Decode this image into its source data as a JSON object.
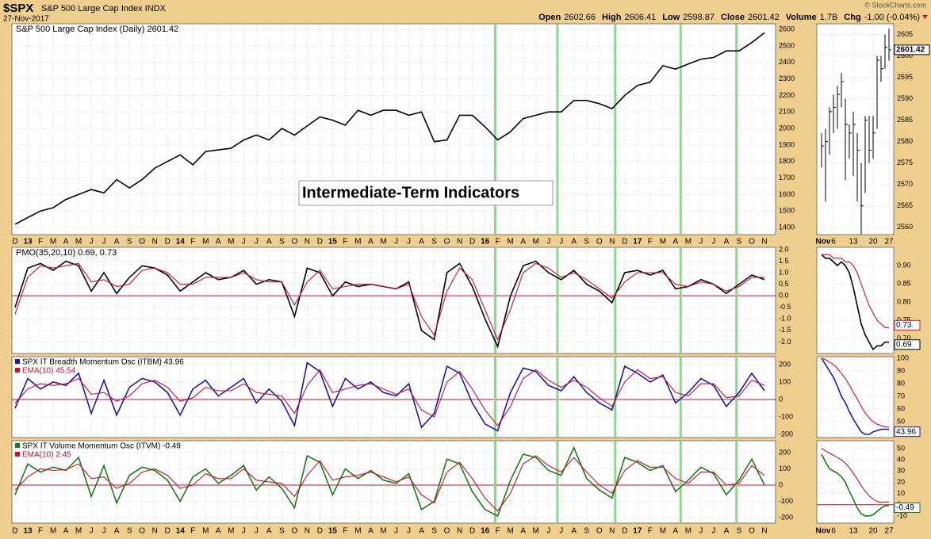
{
  "header": {
    "symbol": "$SPX",
    "name": "S&P 500 Large Cap Index INDX",
    "date": "27-Nov-2017",
    "copyright": "© StockCharts.com",
    "quote": [
      {
        "label": "Open",
        "value": "2602.66"
      },
      {
        "label": "High",
        "value": "2606.41"
      },
      {
        "label": "Low",
        "value": "2598.87"
      },
      {
        "label": "Close",
        "value": "2601.42"
      },
      {
        "label": "Volume",
        "value": "1.7B"
      },
      {
        "label": "Chg",
        "value": "-1.00 (-0.04%)"
      }
    ]
  },
  "chart_data": [
    {
      "type": "line",
      "title": "S&P 500 Large Cap Index (Daily) 2601.42",
      "annotation": "Intermediate-Term Indicators",
      "categories": [
        "D",
        "13",
        "F",
        "M",
        "A",
        "M",
        "J",
        "J",
        "A",
        "S",
        "O",
        "N",
        "D",
        "14",
        "F",
        "M",
        "A",
        "M",
        "J",
        "J",
        "A",
        "S",
        "O",
        "N",
        "D",
        "15",
        "F",
        "M",
        "A",
        "M",
        "J",
        "J",
        "A",
        "S",
        "O",
        "N",
        "D",
        "16",
        "F",
        "M",
        "A",
        "M",
        "J",
        "J",
        "A",
        "S",
        "O",
        "N",
        "D",
        "17",
        "F",
        "M",
        "A",
        "M",
        "J",
        "J",
        "A",
        "S",
        "O",
        "N"
      ],
      "series": [
        {
          "name": "S&P 500 Large Cap Index",
          "color": "#000000",
          "values": [
            1420,
            1460,
            1500,
            1520,
            1570,
            1600,
            1630,
            1610,
            1690,
            1640,
            1690,
            1760,
            1800,
            1840,
            1780,
            1860,
            1870,
            1880,
            1930,
            1960,
            1930,
            2000,
            1960,
            2015,
            2070,
            2050,
            2020,
            2110,
            2080,
            2110,
            2110,
            2080,
            2100,
            1920,
            1930,
            2080,
            2080,
            2010,
            1930,
            1980,
            2060,
            2080,
            2100,
            2100,
            2170,
            2170,
            2150,
            2120,
            2200,
            2260,
            2280,
            2380,
            2360,
            2390,
            2420,
            2430,
            2470,
            2470,
            2520,
            2580
          ]
        }
      ],
      "vlines": [
        37.8,
        42.7,
        47.25,
        52.4,
        56.8
      ],
      "vline_color": "#8fd48f",
      "ylim": [
        1357,
        2634
      ],
      "yticks": [
        1400,
        1500,
        1600,
        1700,
        1800,
        1900,
        2000,
        2100,
        2200,
        2300,
        2400,
        2500,
        2600
      ],
      "grid": true
    },
    {
      "type": "line",
      "title": "PMO(35,20,10) 0.69, 0.73",
      "series": [
        {
          "name": "PMO",
          "color": "#000000",
          "values": [
            -0.5,
            1.2,
            1.4,
            1.1,
            1.5,
            1.3,
            0.2,
            1.0,
            0.1,
            0.8,
            1.3,
            1.2,
            0.9,
            0.2,
            0.6,
            1.0,
            0.7,
            0.8,
            1.1,
            0.5,
            0.7,
            0.6,
            -0.9,
            1.2,
            1.0,
            0.0,
            0.6,
            0.4,
            0.5,
            0.4,
            0.3,
            0.6,
            -1.5,
            -1.9,
            1.0,
            1.4,
            0.4,
            -1.0,
            -2.2,
            0.0,
            1.3,
            1.5,
            1.0,
            0.7,
            1.1,
            0.5,
            0.2,
            -0.3,
            1.0,
            1.1,
            0.9,
            1.1,
            0.3,
            0.4,
            0.7,
            0.5,
            0.1,
            0.5,
            0.9,
            0.7
          ]
        },
        {
          "name": "Signal",
          "color": "#c8102e",
          "values": [
            -0.8,
            0.8,
            1.3,
            1.2,
            1.3,
            1.4,
            0.6,
            0.7,
            0.4,
            0.5,
            1.1,
            1.2,
            1.0,
            0.5,
            0.5,
            0.8,
            0.8,
            0.8,
            1.0,
            0.7,
            0.6,
            0.6,
            -0.4,
            0.6,
            1.1,
            0.3,
            0.4,
            0.5,
            0.5,
            0.4,
            0.3,
            0.5,
            -0.9,
            -1.7,
            0.2,
            1.2,
            0.7,
            -0.6,
            -1.9,
            -0.6,
            1.0,
            1.4,
            1.2,
            0.8,
            1.0,
            0.7,
            0.3,
            -0.1,
            0.6,
            1.0,
            1.0,
            1.0,
            0.5,
            0.4,
            0.6,
            0.5,
            0.2,
            0.4,
            0.8,
            0.8
          ]
        }
      ],
      "ref_line": 0,
      "ref_color": "#c8102e",
      "ylim": [
        -2.5,
        2.1
      ],
      "yticks": [
        {
          "value": -2,
          "label": "-2.0"
        },
        -1.5,
        {
          "value": -1,
          "label": "-1.0"
        },
        -0.5,
        {
          "value": 0,
          "label": "0.0"
        },
        0.5,
        {
          "value": 1,
          "label": "1.0"
        },
        1.5,
        {
          "value": 2,
          "label": "2.0"
        }
      ],
      "grid": true
    },
    {
      "type": "line",
      "series": [
        {
          "name": "SPX IT Breadth Momentum Osc (ITBM) 43.96",
          "color": "#1a1a9c",
          "values": [
            -50,
            120,
            60,
            100,
            80,
            150,
            -80,
            110,
            -90,
            70,
            120,
            100,
            40,
            -90,
            60,
            110,
            20,
            70,
            120,
            -20,
            60,
            -10,
            -150,
            210,
            160,
            -40,
            120,
            60,
            100,
            40,
            20,
            90,
            -160,
            -80,
            190,
            150,
            -20,
            -140,
            -180,
            40,
            180,
            160,
            80,
            50,
            130,
            40,
            -20,
            -60,
            190,
            150,
            100,
            140,
            -20,
            40,
            120,
            80,
            -40,
            40,
            150,
            50
          ]
        },
        {
          "name": "EMA(10) 45.54",
          "color": "#c8102e",
          "values": [
            -20,
            60,
            90,
            80,
            90,
            120,
            30,
            40,
            -10,
            20,
            90,
            110,
            70,
            -10,
            10,
            70,
            50,
            50,
            90,
            40,
            30,
            20,
            -80,
            80,
            170,
            40,
            60,
            80,
            90,
            60,
            30,
            60,
            -60,
            -100,
            100,
            160,
            60,
            -60,
            -150,
            -40,
            120,
            170,
            110,
            70,
            110,
            70,
            10,
            -40,
            100,
            170,
            120,
            130,
            40,
            20,
            90,
            90,
            10,
            20,
            110,
            80
          ]
        }
      ],
      "ref_line": 0,
      "ref_color": "#c8102e",
      "ylim": [
        -218,
        245
      ],
      "yticks": [
        -200,
        -100,
        0,
        100,
        200
      ],
      "grid": true
    },
    {
      "type": "line",
      "series": [
        {
          "name": "SPX IT Volume Momentum Osc (ITVM) -0.49",
          "color": "#1a7a1a",
          "values": [
            -60,
            130,
            80,
            110,
            90,
            170,
            -70,
            120,
            -110,
            60,
            110,
            90,
            30,
            -100,
            50,
            100,
            10,
            60,
            120,
            -30,
            50,
            -20,
            -140,
            180,
            140,
            -60,
            100,
            40,
            90,
            30,
            10,
            70,
            -150,
            -100,
            160,
            130,
            -40,
            -150,
            -190,
            30,
            190,
            170,
            90,
            60,
            230,
            40,
            -30,
            -80,
            170,
            140,
            90,
            120,
            -40,
            30,
            110,
            70,
            -60,
            30,
            160,
            0
          ]
        },
        {
          "name": "EMA(10) 2.45",
          "color": "#c8102e",
          "values": [
            -30,
            50,
            100,
            90,
            95,
            130,
            40,
            50,
            -20,
            10,
            80,
            100,
            60,
            -20,
            0,
            70,
            40,
            40,
            100,
            30,
            20,
            10,
            -70,
            60,
            150,
            30,
            50,
            60,
            80,
            50,
            20,
            50,
            -60,
            -110,
            80,
            140,
            40,
            -80,
            -160,
            -50,
            130,
            180,
            120,
            80,
            170,
            80,
            0,
            -50,
            90,
            150,
            110,
            110,
            40,
            10,
            80,
            80,
            0,
            10,
            120,
            60
          ]
        }
      ],
      "ref_line": 0,
      "ref_color": "#c8102e",
      "ylim": [
        -234,
        273
      ],
      "yticks": [
        -200,
        -100,
        0,
        100,
        200
      ],
      "grid": true
    },
    {
      "type": "ohlc",
      "categories": [
        "Nov",
        null,
        null,
        "6",
        null,
        null,
        null,
        null,
        "13",
        null,
        null,
        null,
        null,
        "20",
        null,
        null,
        null,
        "27"
      ],
      "high": [
        2582,
        2583,
        2588,
        2591,
        2593,
        2596,
        2590,
        2584,
        2587,
        2582,
        2575,
        2586,
        2586,
        2586,
        2600,
        2600,
        2605,
        2606.41
      ],
      "low": [
        2574,
        2566,
        2577,
        2582,
        2583,
        2588,
        2571,
        2576,
        2572,
        2566,
        2558,
        2568,
        2575,
        2576,
        2583,
        2594,
        2597,
        2598.87
      ],
      "close": [
        2579,
        2580,
        2587,
        2588,
        2591,
        2594,
        2584,
        2582,
        2584,
        2578,
        2565,
        2585,
        2578,
        2582,
        2599,
        2597,
        2602,
        2601.42
      ],
      "last_value_label": "2601.42",
      "color": "#000000",
      "ylim": [
        2558.3,
        2607.5
      ],
      "yticks": [
        2560,
        2565,
        2570,
        2575,
        2580,
        2585,
        2590,
        2595,
        2600,
        2605
      ],
      "grid": true
    },
    {
      "type": "line",
      "series": [
        {
          "name": "PMO",
          "color": "#000000",
          "values": [
            0.93,
            0.92,
            0.92,
            0.91,
            0.9,
            0.91,
            0.9,
            0.88,
            0.84,
            0.79,
            0.74,
            0.71,
            0.69,
            0.67,
            0.68,
            0.68,
            0.69,
            0.69
          ],
          "last_value_label": "0.69"
        },
        {
          "name": "Signal",
          "color": "#c8102e",
          "values": [
            0.93,
            0.93,
            0.93,
            0.92,
            0.92,
            0.92,
            0.91,
            0.91,
            0.9,
            0.88,
            0.85,
            0.82,
            0.79,
            0.77,
            0.75,
            0.74,
            0.73,
            0.73
          ],
          "last_value_label": "0.73"
        }
      ],
      "ylim": [
        0.659,
        0.95
      ],
      "yticks": [
        {
          "value": 0.7,
          "label": "0.70"
        },
        0.75,
        {
          "value": 0.8,
          "label": "0.80"
        },
        0.85,
        {
          "value": 0.9,
          "label": "0.90"
        }
      ],
      "grid": true
    },
    {
      "type": "line",
      "series": [
        {
          "name": "ITBM",
          "color": "#1a1a9c",
          "values": [
            100,
            95,
            90,
            85,
            78,
            70,
            65,
            58,
            52,
            47,
            42,
            40,
            40,
            42,
            43,
            44,
            44,
            43.96
          ],
          "last_value_label": "43.96"
        },
        {
          "name": "EMA(10)",
          "color": "#c8102e",
          "values": [
            100,
            99,
            97,
            95,
            92,
            88,
            84,
            79,
            73,
            68,
            62,
            57,
            53,
            50,
            48,
            47,
            46,
            45.54
          ]
        }
      ],
      "ylim": [
        37.5,
        101.25
      ],
      "yticks": [
        40,
        50,
        60,
        70,
        80,
        90,
        100
      ],
      "grid": true
    },
    {
      "type": "line",
      "series": [
        {
          "name": "ITVM",
          "color": "#1a7a1a",
          "values": [
            45,
            38,
            32,
            30,
            28,
            25,
            20,
            12,
            5,
            -3,
            -8,
            -10,
            -10,
            -9,
            -6,
            -3,
            -1,
            -0.49
          ],
          "last_value_label": "-0.49"
        },
        {
          "name": "EMA(10)",
          "color": "#c8102e",
          "values": [
            50,
            48,
            46,
            44,
            42,
            40,
            37,
            33,
            28,
            23,
            17,
            12,
            8,
            5,
            3,
            2,
            2.5,
            2.45
          ]
        }
      ],
      "ref_line": 0,
      "ref_color": "#c8102e",
      "ylim": [
        -16.4,
        57
      ],
      "yticks": [
        -10,
        0,
        10,
        20,
        30,
        40,
        50
      ],
      "grid": true
    }
  ]
}
